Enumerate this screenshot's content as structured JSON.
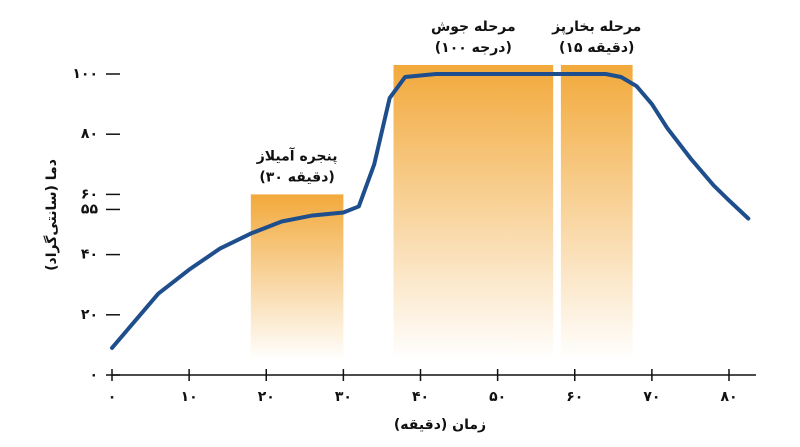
{
  "chart_data": {
    "type": "line",
    "x_label": "زمان (دقیقه)",
    "y_label": "دما (سانتی‌گراد)",
    "x": [
      0,
      3,
      6,
      10,
      14,
      18,
      22,
      26,
      30,
      32,
      34,
      36,
      38,
      42,
      50,
      60,
      64,
      66,
      68,
      70,
      72,
      75,
      78,
      80,
      82.5
    ],
    "values": [
      9,
      18,
      27,
      35,
      42,
      47,
      51,
      53,
      54,
      56,
      70,
      92,
      99,
      100,
      100,
      100,
      100,
      99,
      96,
      90,
      82,
      72,
      63,
      58,
      52
    ],
    "color": "#1f4e8c",
    "xlim": [
      0,
      83.5
    ],
    "ylim": [
      0,
      100
    ],
    "xticks": [
      {
        "value": 0,
        "label": "۰"
      },
      {
        "value": 10,
        "label": "۱۰"
      },
      {
        "value": 20,
        "label": "۲۰"
      },
      {
        "value": 30,
        "label": "۳۰"
      },
      {
        "value": 40,
        "label": "۴۰"
      },
      {
        "value": 50,
        "label": "۵۰"
      },
      {
        "value": 60,
        "label": "۶۰"
      },
      {
        "value": 70,
        "label": "۷۰"
      },
      {
        "value": 80,
        "label": "۸۰"
      }
    ],
    "yticks": [
      {
        "value": 0,
        "label": "۰"
      },
      {
        "value": 20,
        "label": "۲۰"
      },
      {
        "value": 40,
        "label": "۴۰"
      },
      {
        "value": 55,
        "label": "۵۵"
      },
      {
        "value": 60,
        "label": "۶۰"
      },
      {
        "value": 80,
        "label": "۸۰"
      },
      {
        "value": 100,
        "label": "۱۰۰"
      }
    ],
    "regions": [
      {
        "label": "پنجره آمیلاز",
        "sub": "(۳۰ دقیقه)",
        "x0": 18,
        "x1": 30,
        "top": 60
      },
      {
        "label": "مرحله جوش",
        "sub": "(۱۰۰ درجه)",
        "x0": 36.5,
        "x1": 57.2,
        "top": 103
      },
      {
        "label": "مرحله بخارپز",
        "sub": "(۱۵ دقیقه)",
        "x0": 58.2,
        "x1": 67.5,
        "top": 103
      }
    ],
    "region_color": "#f2a93b"
  }
}
